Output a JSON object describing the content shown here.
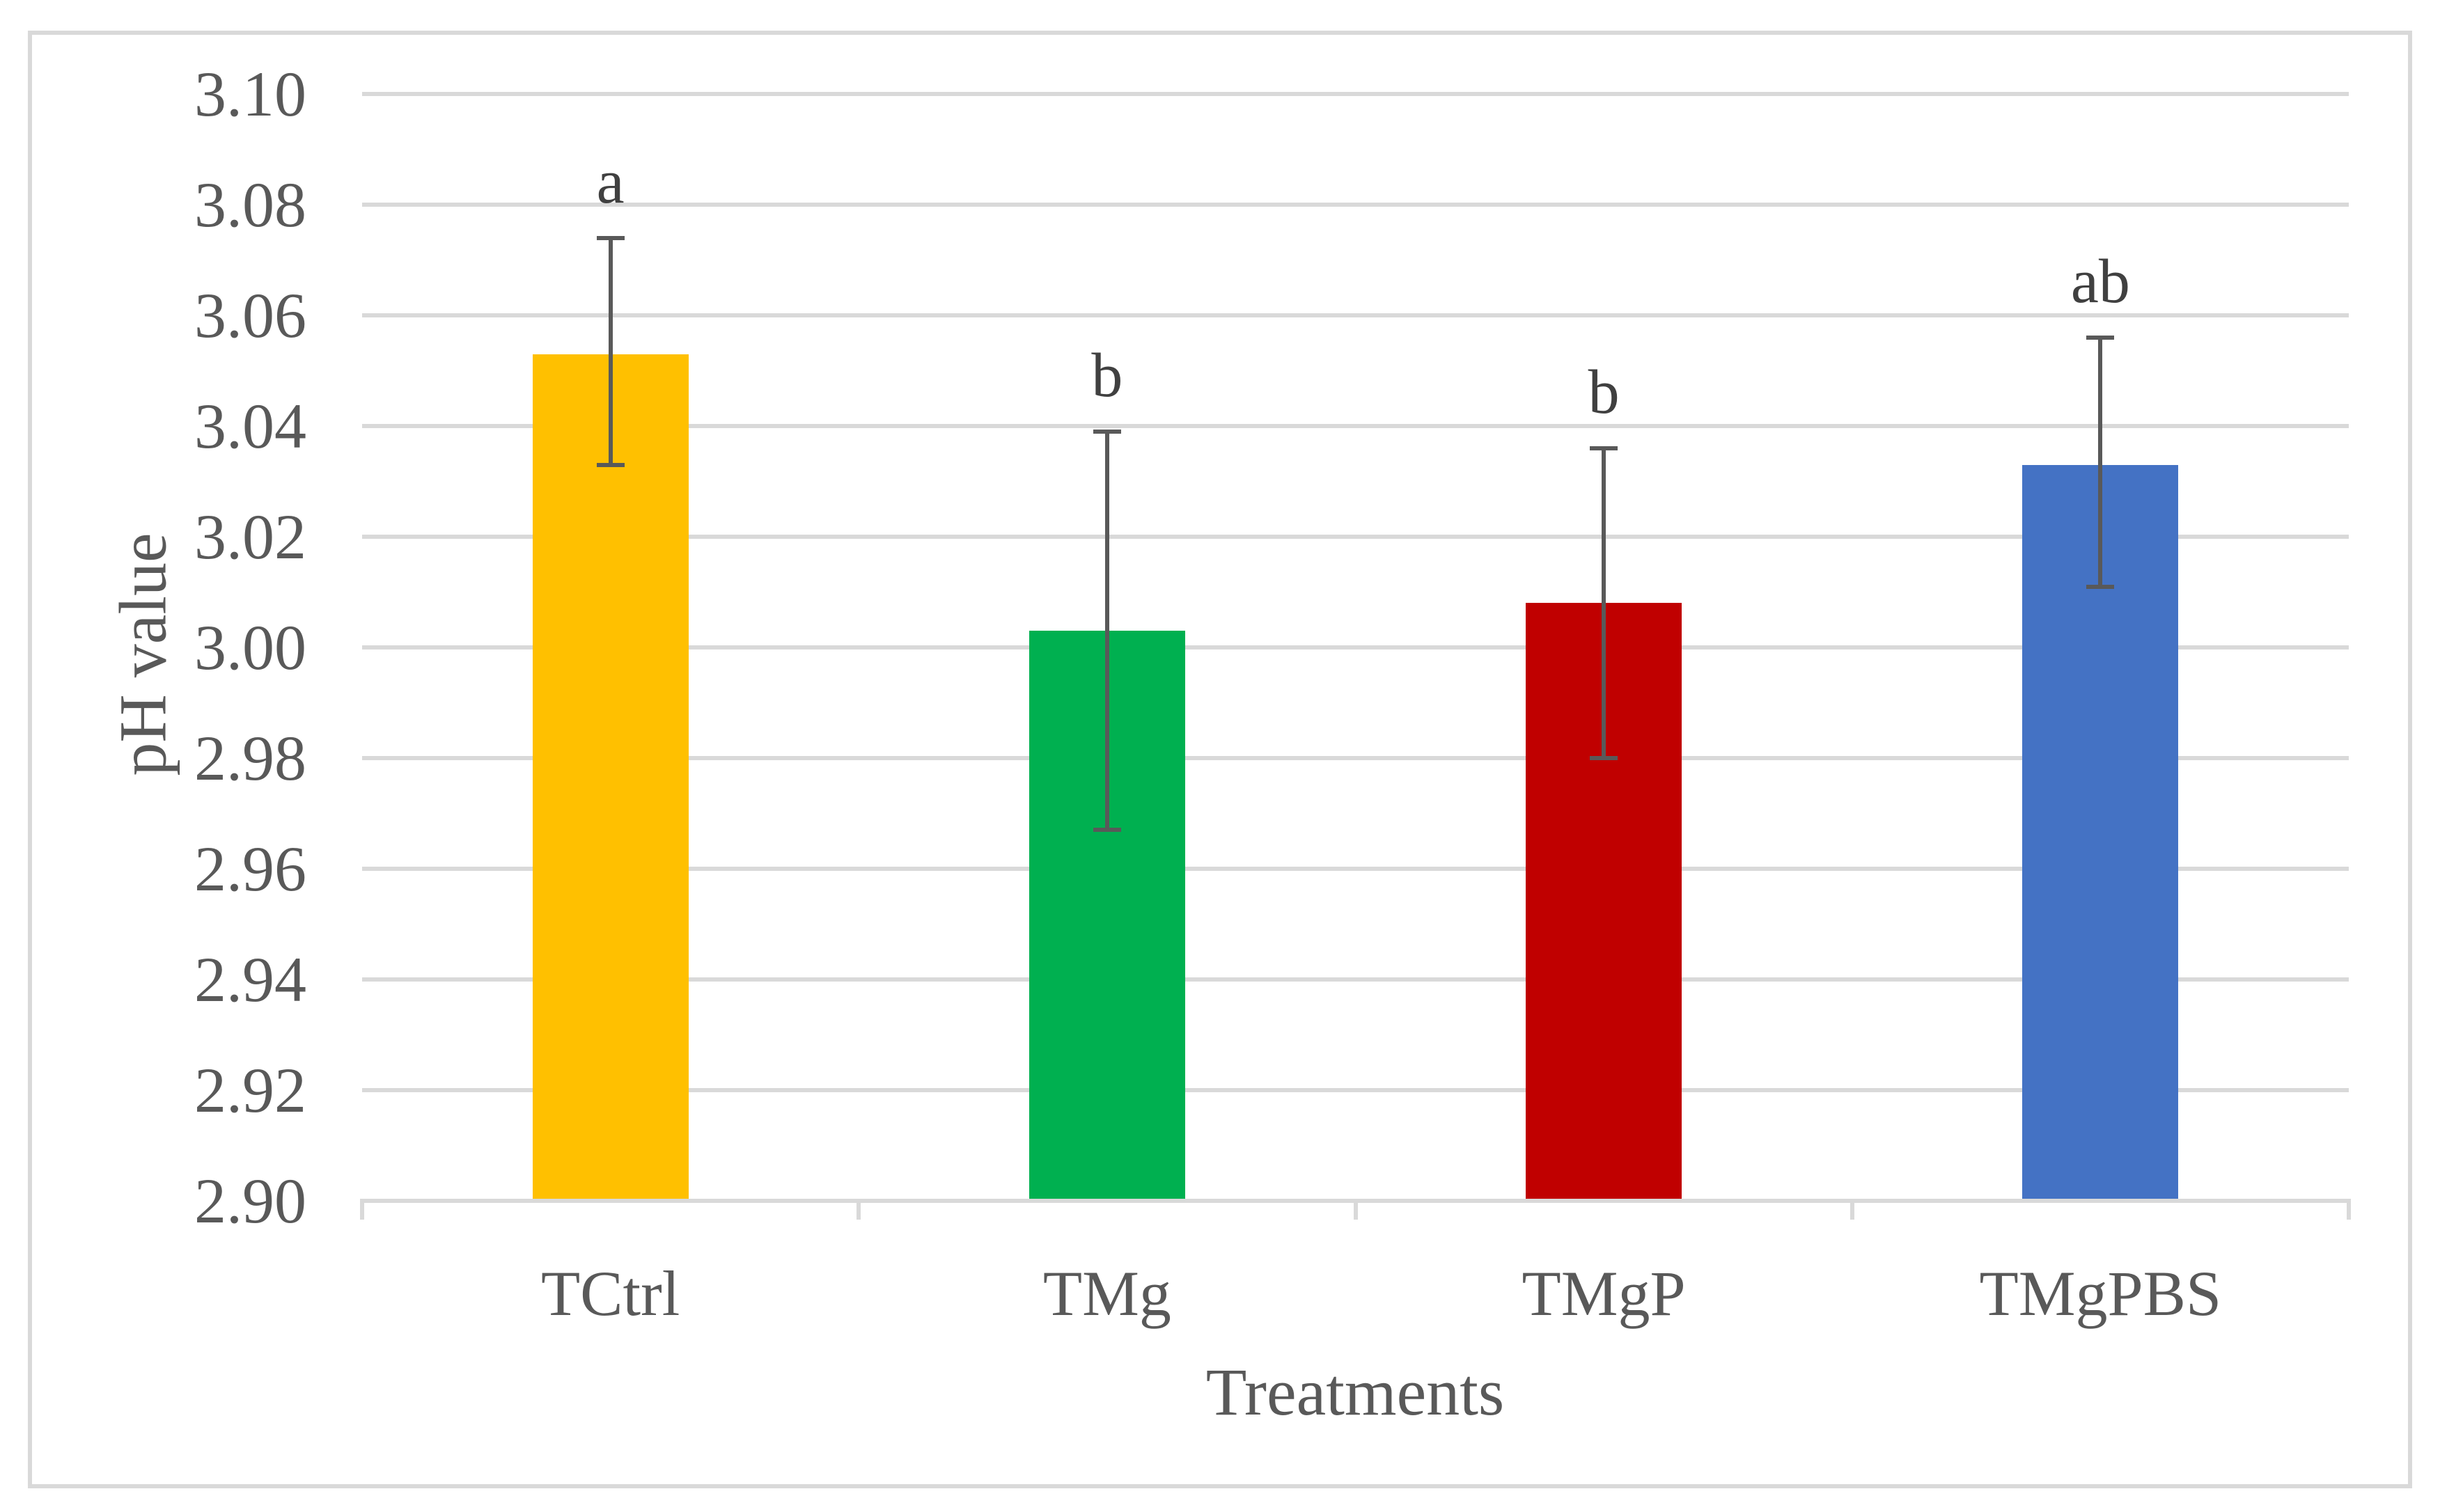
{
  "chart_data": {
    "type": "bar",
    "title": "",
    "xlabel": "Treatments",
    "ylabel": "pH value",
    "categories": [
      "TCtrl",
      "TMg",
      "TMgP",
      "TMgPBS"
    ],
    "series": [
      {
        "name": "pH value",
        "values": [
          3.053,
          3.003,
          3.008,
          3.033
        ],
        "error_upper_abs": [
          3.074,
          3.039,
          3.036,
          3.056
        ],
        "error_lower_abs": [
          3.033,
          2.967,
          2.98,
          3.011
        ],
        "sig_letters": [
          "a",
          "b",
          "b",
          "ab"
        ],
        "bar_colors": [
          "#FFC000",
          "#00B050",
          "#C00000",
          "#4472C4"
        ]
      }
    ],
    "ylim": [
      2.9,
      3.1
    ],
    "ytick_step": 0.02,
    "ytick_decimals": 2,
    "grid": true,
    "legend": "none",
    "colors": {
      "gridline": "#d9d9d9",
      "axis_line": "#d9d9d9",
      "figure_border": "#d9d9d9",
      "error_bar": "#595959",
      "tick_text": "#595959",
      "letter_text": "#404040"
    }
  }
}
